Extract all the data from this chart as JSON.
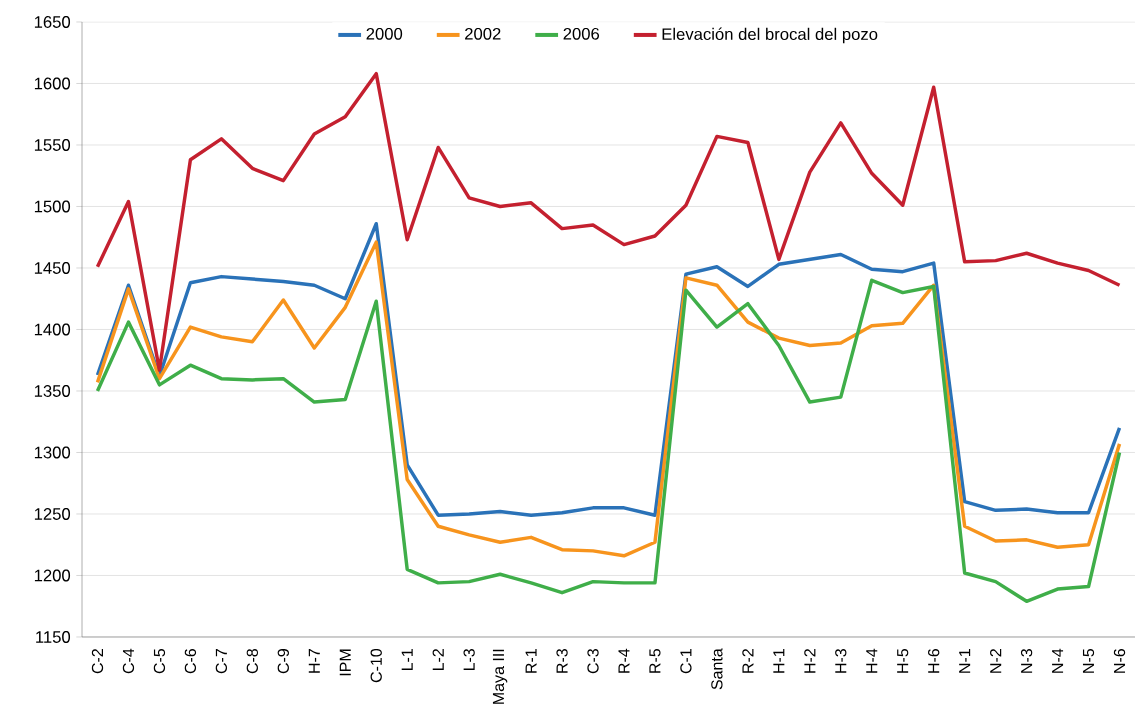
{
  "chart_data": {
    "type": "line",
    "categories": [
      "C-2",
      "C-4",
      "C-5",
      "C-6",
      "C-7",
      "C-8",
      "C-9",
      "H-7",
      "IPM",
      "C-10",
      "L-1",
      "L-2",
      "L-3",
      "Maya III",
      "R-1",
      "R-3",
      "C-3",
      "R-4",
      "R-5",
      "C-1",
      "Santa",
      "R-2",
      "H-1",
      "H-2",
      "H-3",
      "H-4",
      "H-5",
      "H-6",
      "N-1",
      "N-2",
      "N-3",
      "N-4",
      "N-5",
      "N-6"
    ],
    "series": [
      {
        "name": "2000",
        "color": "#2a72b8",
        "values": [
          1363,
          1436,
          1362,
          1438,
          1443,
          1441,
          1439,
          1436,
          1425,
          1486,
          1290,
          1249,
          1250,
          1252,
          1249,
          1251,
          1255,
          1255,
          1249,
          1445,
          1451,
          1435,
          1453,
          1457,
          1461,
          1449,
          1447,
          1454,
          1260,
          1253,
          1254,
          1251,
          1251,
          1320
        ]
      },
      {
        "name": "2002",
        "color": "#f7941d",
        "values": [
          1357,
          1433,
          1360,
          1402,
          1394,
          1390,
          1424,
          1385,
          1418,
          1471,
          1278,
          1240,
          1233,
          1227,
          1231,
          1221,
          1220,
          1216,
          1227,
          1442,
          1436,
          1406,
          1393,
          1387,
          1389,
          1403,
          1405,
          1436,
          1240,
          1228,
          1229,
          1223,
          1225,
          1307
        ]
      },
      {
        "name": "2006",
        "color": "#3fae49",
        "values": [
          1350,
          1406,
          1355,
          1371,
          1360,
          1359,
          1360,
          1341,
          1343,
          1423,
          1205,
          1194,
          1195,
          1201,
          1194,
          1186,
          1195,
          1194,
          1194,
          1432,
          1402,
          1421,
          1387,
          1341,
          1345,
          1440,
          1430,
          1435,
          1202,
          1195,
          1179,
          1189,
          1191,
          1300
        ]
      },
      {
        "name": "Elevación del brocal del pozo",
        "color": "#c4202f",
        "values": [
          1451,
          1504,
          1367,
          1538,
          1555,
          1531,
          1521,
          1559,
          1573,
          1608,
          1473,
          1548,
          1507,
          1500,
          1503,
          1482,
          1485,
          1469,
          1476,
          1501,
          1557,
          1552,
          1457,
          1528,
          1568,
          1527,
          1501,
          1597,
          1455,
          1456,
          1462,
          1454,
          1448,
          1436
        ]
      }
    ],
    "ylim": [
      1150,
      1650
    ],
    "yticks": [
      1150,
      1200,
      1250,
      1300,
      1350,
      1400,
      1450,
      1500,
      1550,
      1600,
      1650
    ],
    "grid": "y",
    "legend": "top",
    "marker": "none",
    "line_style": "solid"
  }
}
